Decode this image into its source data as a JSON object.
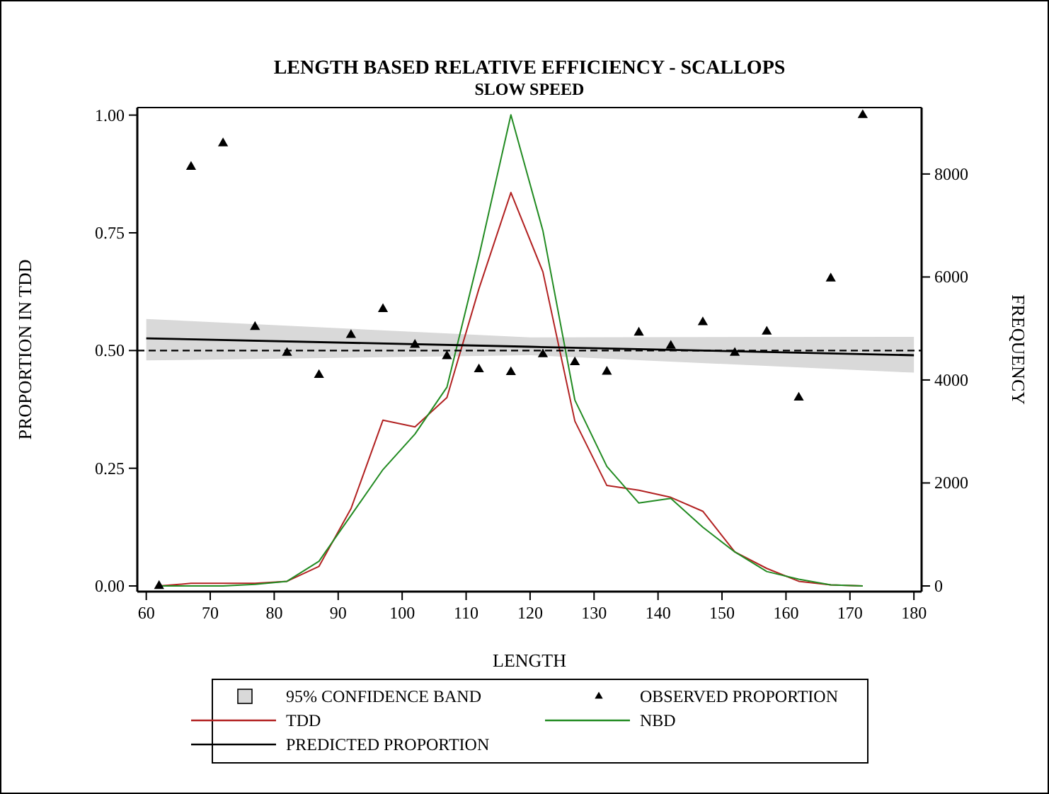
{
  "chart_data": {
    "type": "line",
    "title": "LENGTH BASED RELATIVE EFFICIENCY - SCALLOPS",
    "subtitle": "SLOW SPEED",
    "xlabel": "LENGTH",
    "ylabel": "PROPORTION IN TDD",
    "y2label": "FREQUENCY",
    "xlim": [
      58.6,
      181.2
    ],
    "xticks": [
      60,
      70,
      80,
      90,
      100,
      110,
      120,
      130,
      140,
      150,
      160,
      170,
      180
    ],
    "ylim": [
      -0.012,
      1.016
    ],
    "yticks": [
      {
        "value": 0,
        "label": "0.00"
      },
      {
        "value": 0.25,
        "label": "0.25"
      },
      {
        "value": 0.5,
        "label": "0.50"
      },
      {
        "value": 0.75,
        "label": "0.75"
      },
      {
        "value": 1,
        "label": "1.00"
      }
    ],
    "y2lim": [
      -110,
      9290
    ],
    "y2ticks": [
      0,
      2000,
      4000,
      6000,
      8000
    ],
    "legend": "bottom",
    "grid": false,
    "annotations": [
      "95% CONFIDENCE BAND"
    ],
    "ref_lines": [
      {
        "axis": "y",
        "value": 0.5,
        "line_style": "dashed",
        "color": "#000000"
      }
    ],
    "series": [
      {
        "name": "OBSERVED PROPORTION",
        "type": "scatter",
        "marker": "triangle",
        "color": "#000000",
        "x": [
          62,
          67,
          72,
          77,
          82,
          87,
          92,
          97,
          102,
          107,
          112,
          117,
          122,
          127,
          132,
          137,
          142,
          147,
          152,
          157,
          162,
          167,
          172
        ],
        "values": [
          0.0,
          0.89,
          0.94,
          0.55,
          0.495,
          0.448,
          0.533,
          0.588,
          0.512,
          0.488,
          0.46,
          0.454,
          0.492,
          0.475,
          0.455,
          0.538,
          0.51,
          0.56,
          0.495,
          0.54,
          0.4,
          0.653,
          1.0
        ]
      },
      {
        "name": "TDD",
        "axis": "y2",
        "color": "#b22222",
        "x": [
          62,
          67,
          72,
          77,
          82,
          87,
          92,
          97,
          102,
          107,
          112,
          117,
          122,
          127,
          132,
          137,
          142,
          147,
          152,
          157,
          162,
          167,
          172
        ],
        "values": [
          0,
          50,
          50,
          50,
          90,
          380,
          1500,
          3220,
          3090,
          3660,
          5770,
          7640,
          6100,
          3200,
          1950,
          1860,
          1720,
          1450,
          660,
          340,
          90,
          20,
          0
        ]
      },
      {
        "name": "NBD",
        "axis": "y2",
        "color": "#228b22",
        "x": [
          62,
          67,
          72,
          77,
          82,
          87,
          92,
          97,
          102,
          107,
          112,
          117,
          122,
          127,
          132,
          137,
          142,
          147,
          152,
          157,
          162,
          167,
          172
        ],
        "values": [
          0,
          0,
          0,
          30,
          90,
          480,
          1370,
          2260,
          2950,
          3860,
          6400,
          9150,
          6900,
          3610,
          2320,
          1610,
          1700,
          1140,
          660,
          280,
          130,
          20,
          0
        ]
      },
      {
        "name": "PREDICTED PROPORTION",
        "color": "#000000",
        "x": [
          60,
          120,
          180
        ],
        "values": [
          0.526,
          0.508,
          0.49
        ],
        "lower": [
          0.479,
          0.49,
          0.453
        ],
        "upper": [
          0.567,
          0.528,
          0.529
        ]
      }
    ]
  }
}
